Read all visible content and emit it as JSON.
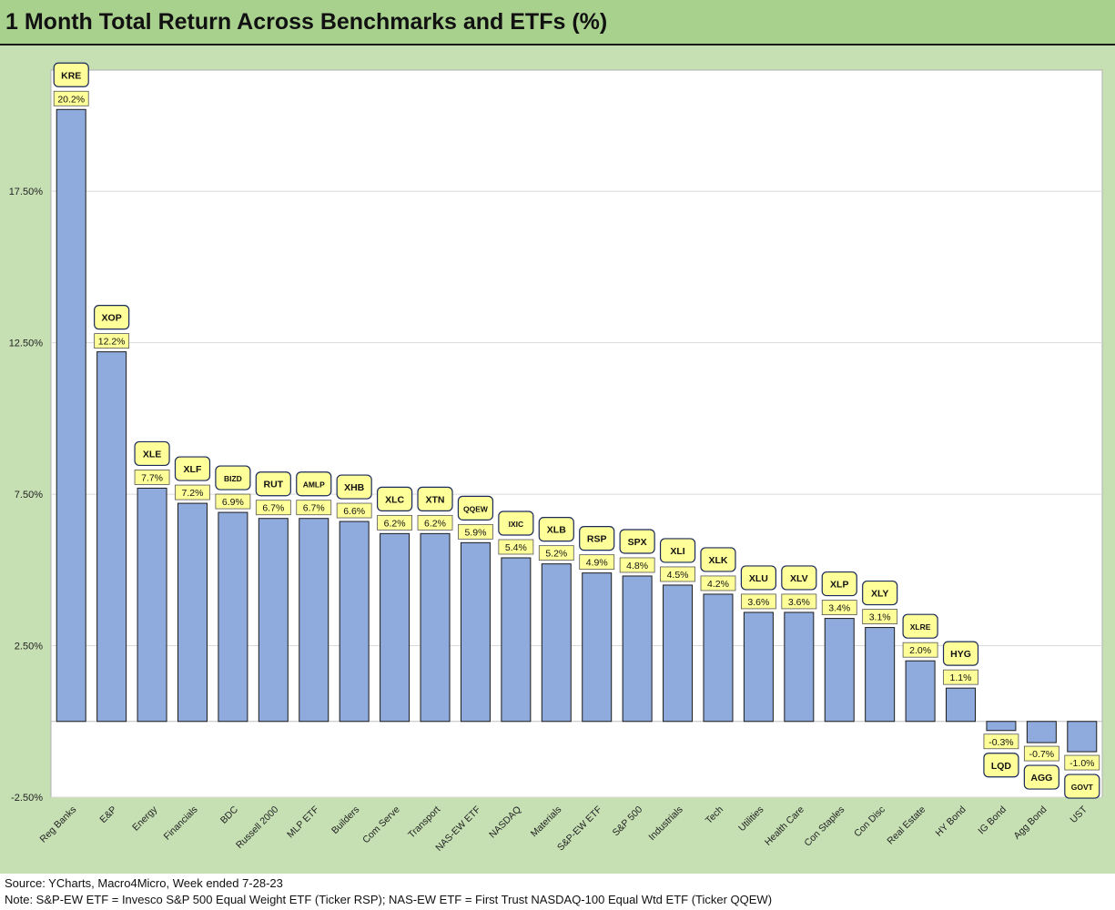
{
  "title": "1 Month Total Return Across Benchmarks and ETFs (%)",
  "footer": {
    "source": "Source: YCharts, Macro4Micro, Week ended 7-28-23",
    "note": "Note: S&P-EW ETF = Invesco S&P 500 Equal Weight ETF (Ticker RSP); NAS-EW ETF = First Trust NASDAQ-100 Equal Wtd ETF (Ticker QQEW)"
  },
  "colors": {
    "bar": "#8faadc",
    "bar_border": "#1a1a1a",
    "label_fill": "#ffff99",
    "title_bg": "#a9d18e",
    "frame_bg": "#c6e0b4"
  },
  "chart_data": {
    "type": "bar",
    "title": "1 Month Total Return Across Benchmarks and ETFs (%)",
    "ylim": [
      -2.5,
      21.5
    ],
    "yticks": [
      "-2.50%",
      "2.50%",
      "7.50%",
      "12.50%",
      "17.50%"
    ],
    "ytick_values": [
      -2.5,
      2.5,
      7.5,
      12.5,
      17.5
    ],
    "grid": true,
    "categories": [
      "Reg Banks",
      "E&P",
      "Energy",
      "Financials",
      "BDC",
      "Russell 2000",
      "MLP ETF",
      "Builders",
      "Com Serve",
      "Transport",
      "NAS-EW ETF",
      "NASDAQ",
      "Materials",
      "S&P-EW ETF",
      "S&P 500",
      "Industrials",
      "Tech",
      "Utilities",
      "Health Care",
      "Con Staples",
      "Con Disc",
      "Real Estate",
      "HY Bond",
      "IG Bond",
      "Agg Bond",
      "UST"
    ],
    "tickers": [
      "KRE",
      "XOP",
      "XLE",
      "XLF",
      "BIZD",
      "RUT",
      "AMLP",
      "XHB",
      "XLC",
      "XTN",
      "QQEW",
      "IXIC",
      "XLB",
      "RSP",
      "SPX",
      "XLI",
      "XLK",
      "XLU",
      "XLV",
      "XLP",
      "XLY",
      "XLRE",
      "HYG",
      "LQD",
      "AGG",
      "GOVT"
    ],
    "values": [
      20.2,
      12.2,
      7.7,
      7.2,
      6.9,
      6.7,
      6.7,
      6.6,
      6.2,
      6.2,
      5.9,
      5.4,
      5.2,
      4.9,
      4.8,
      4.5,
      4.2,
      3.6,
      3.6,
      3.4,
      3.1,
      2.0,
      1.1,
      -0.3,
      -0.7,
      -1.0
    ],
    "data_labels": [
      "20.2%",
      "12.2%",
      "7.7%",
      "7.2%",
      "6.9%",
      "6.7%",
      "6.7%",
      "6.6%",
      "6.2%",
      "6.2%",
      "5.9%",
      "5.4%",
      "5.2%",
      "4.9%",
      "4.8%",
      "4.5%",
      "4.2%",
      "3.6%",
      "3.6%",
      "3.4%",
      "3.1%",
      "2.0%",
      "1.1%",
      "-0.3%",
      "-0.7%",
      "-1.0%"
    ]
  }
}
